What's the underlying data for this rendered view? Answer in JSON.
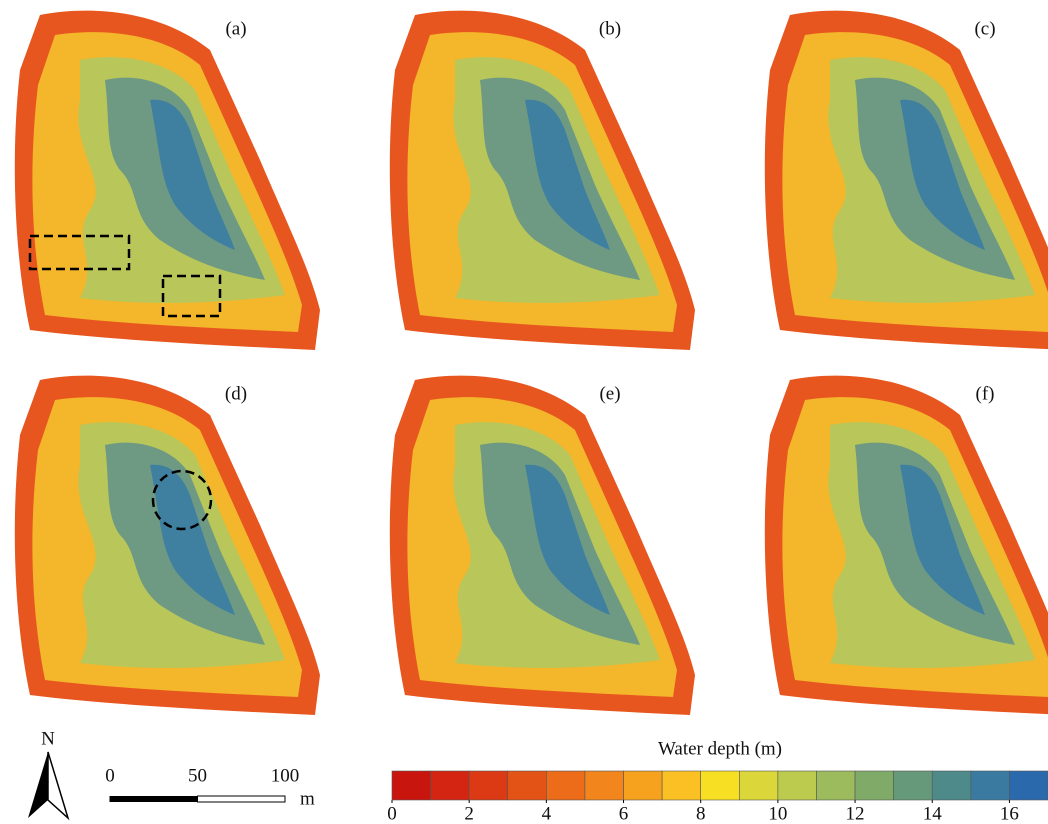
{
  "panels": [
    {
      "label": "(a)"
    },
    {
      "label": "(b)"
    },
    {
      "label": "(c)"
    },
    {
      "label": "(d)"
    },
    {
      "label": "(e)"
    },
    {
      "label": "(f)"
    }
  ],
  "north": "N",
  "scale_bar": {
    "ticks": [
      0,
      50,
      100
    ],
    "lim": [
      0,
      100
    ],
    "unit": "m"
  },
  "legend": {
    "title": "Water depth (m)",
    "lim": [
      0,
      17
    ],
    "ticks": [
      0,
      2,
      4,
      6,
      8,
      10,
      12,
      14,
      16
    ],
    "colors": [
      "#c8160f",
      "#d42512",
      "#dc3a14",
      "#e45316",
      "#ec6c1a",
      "#f2861d",
      "#f7a21f",
      "#fbc023",
      "#f7e024",
      "#dbd63a",
      "#bccb4e",
      "#9cbb5c",
      "#7faa68",
      "#66987a",
      "#4f8a8a",
      "#3a7aa0",
      "#2b69ad"
    ]
  }
}
